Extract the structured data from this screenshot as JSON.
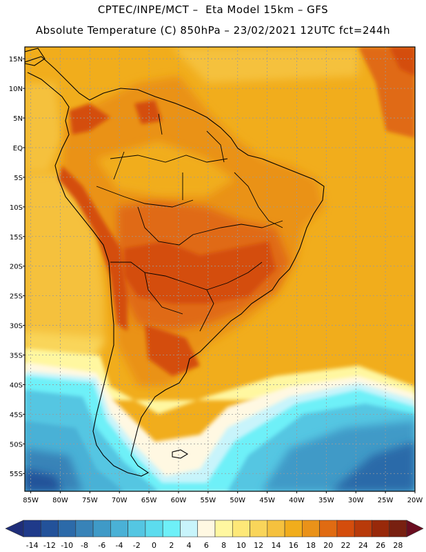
{
  "header": {
    "line1": "CPTEC/INPE/MCT –  Eta Model 15km – GFS",
    "line2": "Absolute Temperature (C) 850hPa – 23/02/2021 12UTC fct=244h"
  },
  "map": {
    "lat_labels": [
      "15N",
      "10N",
      "5N",
      "EQ",
      "5S",
      "10S",
      "15S",
      "20S",
      "25S",
      "30S",
      "35S",
      "40S",
      "45S",
      "50S",
      "55S"
    ],
    "lat_values": [
      15,
      10,
      5,
      0,
      -5,
      -10,
      -15,
      -20,
      -25,
      -30,
      -35,
      -40,
      -45,
      -50,
      -55
    ],
    "lon_labels": [
      "85W",
      "80W",
      "75W",
      "70W",
      "65W",
      "60W",
      "55W",
      "50W",
      "45W",
      "40W",
      "35W",
      "30W",
      "25W",
      "20W"
    ],
    "lon_values": [
      -85,
      -80,
      -75,
      -70,
      -65,
      -60,
      -55,
      -50,
      -45,
      -40,
      -35,
      -30,
      -25,
      -20
    ],
    "lat_range": [
      -58,
      17
    ],
    "lon_range": [
      -86,
      -20
    ],
    "grid": true
  },
  "colorbar": {
    "labels": [
      "-14",
      "-12",
      "-10",
      "-8",
      "-6",
      "-4",
      "-2",
      "0",
      "2",
      "4",
      "6",
      "8",
      "10",
      "12",
      "14",
      "16",
      "18",
      "20",
      "22",
      "24",
      "26",
      "28"
    ],
    "colors": [
      "#1f3a8a",
      "#23529a",
      "#2c6aa9",
      "#3883b8",
      "#3f9ac7",
      "#4ab1d6",
      "#54c6e2",
      "#5cdcee",
      "#6ef0f8",
      "#c8f4fb",
      "#fff8e2",
      "#fff7a0",
      "#fde878",
      "#f9d55a",
      "#f5c13e",
      "#f1ad1c",
      "#ea9219",
      "#e06b12",
      "#d44d0c",
      "#b83a0a",
      "#98290a",
      "#782010"
    ],
    "end_left_color": "#1f2e7a",
    "end_right_color": "#6a0d20"
  }
}
